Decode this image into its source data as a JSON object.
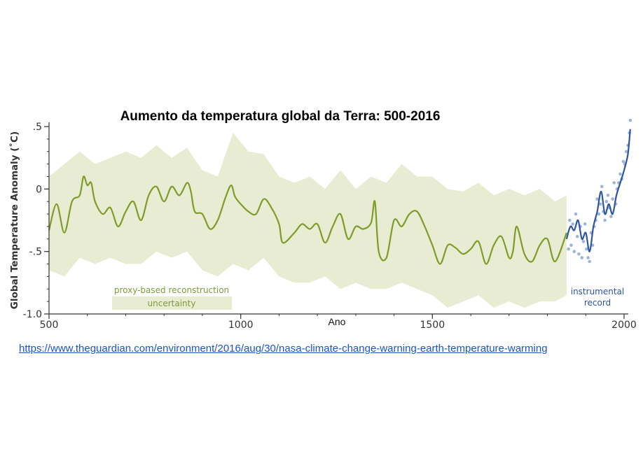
{
  "chart_data": {
    "type": "line",
    "title": "Aumento da temperatura global da Terra: 500-2016",
    "xlabel": "Ano",
    "ylabel": "Global Temperature Anomaly (˚C)",
    "xlim": [
      500,
      2016
    ],
    "ylim": [
      -1.0,
      0.5
    ],
    "x_ticks": [
      500,
      1000,
      1500,
      2000
    ],
    "x_tick_labels": [
      "500",
      "1000",
      "1500",
      "2000"
    ],
    "y_ticks": [
      0.5,
      0,
      -0.5,
      -1.0
    ],
    "y_tick_labels": [
      ".5",
      "0",
      "-.5",
      "-1.0"
    ],
    "legend": {
      "placement": "bottom-left",
      "entries": [
        "proxy-based reconstruction",
        "uncertainty"
      ]
    },
    "annotation": {
      "line1": "instrumental",
      "line2": "record",
      "placement": "bottom-right"
    },
    "colors": {
      "reconstruction": "#7f9c2a",
      "uncertainty": "#e8ecd2",
      "instrumental": "#2c57a0",
      "instrumental_points": "#9cb4e0"
    },
    "series": [
      {
        "name": "proxy-based reconstruction",
        "x": [
          500,
          520,
          540,
          560,
          580,
          590,
          600,
          610,
          620,
          640,
          660,
          680,
          700,
          720,
          740,
          760,
          780,
          800,
          820,
          840,
          860,
          870,
          880,
          900,
          920,
          940,
          960,
          975,
          985,
          1000,
          1020,
          1040,
          1060,
          1080,
          1100,
          1110,
          1140,
          1160,
          1180,
          1200,
          1220,
          1240,
          1260,
          1280,
          1300,
          1320,
          1340,
          1350,
          1360,
          1380,
          1400,
          1420,
          1440,
          1460,
          1480,
          1500,
          1520,
          1540,
          1560,
          1580,
          1600,
          1620,
          1640,
          1660,
          1680,
          1700,
          1710,
          1720,
          1740,
          1760,
          1780,
          1800,
          1820,
          1850
        ],
        "values": [
          -0.33,
          -0.12,
          -0.35,
          -0.1,
          -0.05,
          0.1,
          0.03,
          0.05,
          -0.1,
          -0.2,
          -0.15,
          -0.3,
          -0.18,
          -0.1,
          -0.25,
          -0.05,
          0.02,
          -0.1,
          0.02,
          -0.05,
          0.05,
          -0.02,
          -0.18,
          -0.2,
          -0.32,
          -0.25,
          -0.07,
          0.03,
          -0.06,
          -0.12,
          -0.18,
          -0.2,
          -0.08,
          -0.15,
          -0.28,
          -0.43,
          -0.35,
          -0.28,
          -0.32,
          -0.28,
          -0.43,
          -0.3,
          -0.2,
          -0.4,
          -0.3,
          -0.32,
          -0.27,
          -0.1,
          -0.5,
          -0.55,
          -0.25,
          -0.3,
          -0.2,
          -0.18,
          -0.3,
          -0.45,
          -0.6,
          -0.45,
          -0.47,
          -0.52,
          -0.48,
          -0.42,
          -0.6,
          -0.45,
          -0.38,
          -0.55,
          -0.5,
          -0.3,
          -0.52,
          -0.58,
          -0.45,
          -0.4,
          -0.58,
          -0.35
        ]
      },
      {
        "name": "uncertainty",
        "x": [
          500,
          540,
          580,
          620,
          660,
          700,
          740,
          780,
          820,
          860,
          900,
          940,
          980,
          1020,
          1060,
          1100,
          1140,
          1180,
          1220,
          1260,
          1300,
          1340,
          1380,
          1420,
          1460,
          1500,
          1540,
          1580,
          1620,
          1660,
          1700,
          1740,
          1780,
          1820,
          1850
        ],
        "upper": [
          0.1,
          0.2,
          0.3,
          0.2,
          0.25,
          0.3,
          0.25,
          0.35,
          0.25,
          0.33,
          0.15,
          0.1,
          0.45,
          0.3,
          0.28,
          0.1,
          0.05,
          0.1,
          0.0,
          0.15,
          0.0,
          0.1,
          0.05,
          0.2,
          0.1,
          0.1,
          0.0,
          -0.02,
          0.05,
          -0.05,
          0.0,
          -0.05,
          0.0,
          -0.1,
          -0.05
        ],
        "lower": [
          -0.65,
          -0.7,
          -0.55,
          -0.6,
          -0.55,
          -0.6,
          -0.6,
          -0.5,
          -0.55,
          -0.5,
          -0.65,
          -0.7,
          -0.6,
          -0.65,
          -0.55,
          -0.7,
          -0.75,
          -0.75,
          -0.7,
          -0.8,
          -0.75,
          -0.8,
          -0.8,
          -0.75,
          -0.8,
          -0.85,
          -0.95,
          -0.9,
          -0.85,
          -0.95,
          -0.9,
          -0.95,
          -0.9,
          -0.9,
          -0.85
        ]
      },
      {
        "name": "instrumental record",
        "x": [
          1850,
          1860,
          1870,
          1880,
          1890,
          1900,
          1910,
          1920,
          1930,
          1940,
          1950,
          1960,
          1970,
          1980,
          1990,
          2000,
          2010,
          2016
        ],
        "values": [
          -0.4,
          -0.3,
          -0.33,
          -0.25,
          -0.4,
          -0.35,
          -0.5,
          -0.3,
          -0.18,
          -0.02,
          -0.2,
          -0.12,
          -0.2,
          -0.05,
          0.05,
          0.15,
          0.28,
          0.48
        ]
      }
    ],
    "instrumental_points": {
      "x": [
        1855,
        1858,
        1862,
        1866,
        1870,
        1874,
        1878,
        1882,
        1886,
        1890,
        1894,
        1898,
        1902,
        1906,
        1910,
        1914,
        1918,
        1922,
        1926,
        1930,
        1934,
        1938,
        1942,
        1946,
        1950,
        1954,
        1958,
        1962,
        1966,
        1970,
        1974,
        1978,
        1982,
        1986,
        1990,
        1994,
        1998,
        2002,
        2006,
        2010,
        2014,
        2016
      ],
      "y": [
        -0.48,
        -0.25,
        -0.45,
        -0.28,
        -0.5,
        -0.2,
        -0.38,
        -0.52,
        -0.3,
        -0.55,
        -0.42,
        -0.28,
        -0.48,
        -0.55,
        -0.58,
        -0.35,
        -0.45,
        -0.3,
        -0.25,
        -0.08,
        -0.2,
        -0.12,
        0.02,
        -0.18,
        -0.25,
        -0.1,
        -0.05,
        -0.15,
        -0.22,
        -0.08,
        0.05,
        -0.12,
        0.0,
        0.05,
        0.12,
        0.08,
        0.22,
        0.2,
        0.3,
        0.35,
        0.45,
        0.55
      ]
    }
  },
  "source": {
    "url_text": "https://www.theguardian.com/environment/2016/aug/30/nasa-climate-change-warning-earth-temperature-warming"
  }
}
